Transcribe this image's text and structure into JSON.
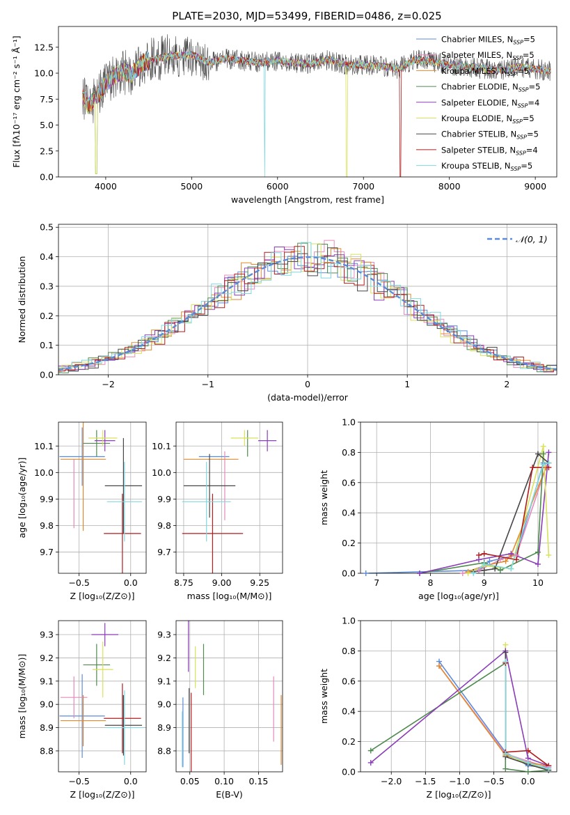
{
  "colors": [
    "#5b8bd8",
    "#e589bc",
    "#e08a2e",
    "#4f8a4f",
    "#8a3bb8",
    "#d8e25a",
    "#454545",
    "#b01c1c",
    "#7fd8e0"
  ],
  "chart_data": [
    {
      "id": "spectrum",
      "type": "line",
      "title": "PLATE=2030, MJD=53499, FIBERID=0486, z=0.025",
      "xlabel": "wavelength [Angstrom, rest frame]",
      "ylabel": "Flux [fλ10⁻¹⁷ erg cm⁻² s⁻¹ Å⁻¹]",
      "xlim": [
        3450,
        9250
      ],
      "ylim": [
        0,
        14.5
      ],
      "xticks": [
        4000,
        5000,
        6000,
        7000,
        8000,
        9000
      ],
      "yticks": [
        0.0,
        2.5,
        5.0,
        7.5,
        10.0,
        12.5
      ],
      "ytick_labels": [
        "0.0",
        "2.5",
        "5.0",
        "7.5",
        "10.0",
        "12.5"
      ],
      "continuum": [
        [
          3730,
          8.0
        ],
        [
          3800,
          6.8
        ],
        [
          3900,
          7.8
        ],
        [
          4000,
          9.0
        ],
        [
          4100,
          9.8
        ],
        [
          4200,
          10.2
        ],
        [
          4300,
          9.8
        ],
        [
          4400,
          10.8
        ],
        [
          4500,
          11.2
        ],
        [
          4700,
          11.6
        ],
        [
          5000,
          11.8
        ],
        [
          5200,
          11.0
        ],
        [
          5400,
          11.4
        ],
        [
          5600,
          11.2
        ],
        [
          5800,
          11.0
        ],
        [
          6000,
          11.2
        ],
        [
          6200,
          11.0
        ],
        [
          6400,
          10.9
        ],
        [
          6600,
          11.3
        ],
        [
          6800,
          10.8
        ],
        [
          7000,
          10.8
        ],
        [
          7200,
          10.7
        ],
        [
          7400,
          10.4
        ],
        [
          7600,
          11.3
        ],
        [
          7800,
          11.1
        ],
        [
          8000,
          10.8
        ],
        [
          8200,
          10.6
        ],
        [
          8400,
          10.4
        ],
        [
          8600,
          10.3
        ],
        [
          8800,
          10.6
        ],
        [
          9000,
          10.4
        ],
        [
          9180,
          10.2
        ]
      ],
      "legend_position": "upper-right",
      "legend": [
        "Chabrier MILES, N_SSP=5",
        "Salpeter MILES, N_SSP=5",
        "Kroupa MILES, N_SSP=5",
        "Chabrier ELODIE, N_SSP=5",
        "Salpeter ELODIE, N_SSP=4",
        "Kroupa ELODIE, N_SSP=5",
        "Chabrier STELIB, N_SSP=5",
        "Salpeter STELIB, N_SSP=4",
        "Kroupa STELIB, N_SSP=5"
      ],
      "grid": false
    },
    {
      "id": "residuals",
      "type": "histogram",
      "xlabel": "(data-model)/error",
      "ylabel": "Normed distribution",
      "xlim": [
        -2.5,
        2.5
      ],
      "ylim": [
        0,
        0.51
      ],
      "xticks": [
        -2,
        -1,
        0,
        1,
        2
      ],
      "xtick_labels": [
        "−2",
        "−1",
        "0",
        "1",
        "2"
      ],
      "yticks": [
        0.0,
        0.1,
        0.2,
        0.3,
        0.4,
        0.5
      ],
      "ytick_labels": [
        "0.0",
        "0.1",
        "0.2",
        "0.3",
        "0.4",
        "0.5"
      ],
      "bin_width": 0.1,
      "normal_curve_label": "𝒩(0, 1)",
      "legend_position": "upper-right",
      "grid": true
    },
    {
      "id": "age-vs-Z",
      "type": "scatter",
      "xlabel": "Z [log₁₀(Z/Z⊙)]",
      "ylabel": "age  [log₁₀(age/yr)]",
      "xlim": [
        -0.7,
        0.15
      ],
      "ylim": [
        9.62,
        10.19
      ],
      "xticks": [
        -0.5,
        0.0
      ],
      "xtick_labels": [
        "−0.5",
        "0.0"
      ],
      "yticks": [
        9.7,
        9.8,
        9.9,
        10.0,
        10.1
      ],
      "ytick_labels": [
        "9.7",
        "9.8",
        "9.9",
        "10.0",
        "10.1"
      ],
      "points": [
        {
          "x": -0.47,
          "y": 10.06,
          "xerr": 0.22,
          "yerr": 0.11
        },
        {
          "x": -0.55,
          "y": 9.92,
          "xerr": 0.0,
          "yerr": 0.13
        },
        {
          "x": -0.46,
          "y": 10.05,
          "xerr": 0.22,
          "yerr": 0.27
        },
        {
          "x": -0.33,
          "y": 10.11,
          "xerr": 0.13,
          "yerr": 0.05
        },
        {
          "x": -0.25,
          "y": 10.12,
          "xerr": 0.1,
          "yerr": 0.04
        },
        {
          "x": -0.27,
          "y": 10.13,
          "xerr": 0.14,
          "yerr": 0.03
        },
        {
          "x": -0.07,
          "y": 9.95,
          "xerr": 0.18,
          "yerr": 0.18
        },
        {
          "x": -0.08,
          "y": 9.77,
          "xerr": 0.18,
          "yerr": 0.15
        },
        {
          "x": -0.06,
          "y": 9.89,
          "xerr": 0.17,
          "yerr": 0.15
        }
      ],
      "grid": true
    },
    {
      "id": "age-vs-mass",
      "type": "scatter",
      "xlabel": "mass [log₁₀(M/M⊙)]",
      "ylabel": "",
      "xlim": [
        8.7,
        9.4
      ],
      "ylim": [
        9.62,
        10.19
      ],
      "xticks": [
        8.75,
        9.0,
        9.25
      ],
      "xtick_labels": [
        "8.75",
        "9.00",
        "9.25"
      ],
      "yticks": [
        9.7,
        9.8,
        9.9,
        10.0,
        10.1
      ],
      "ytick_labels": [
        "9.7",
        "9.8",
        "9.9",
        "10.0",
        "10.1"
      ],
      "points": [
        {
          "x": 8.95,
          "y": 10.06,
          "xerr": 0.1,
          "yerr": 0.0
        },
        {
          "x": 9.02,
          "y": 9.95,
          "xerr": 0.0,
          "yerr": 0.13
        },
        {
          "x": 8.93,
          "y": 10.05,
          "xerr": 0.18,
          "yerr": 0.0
        },
        {
          "x": 9.17,
          "y": 10.11,
          "xerr": 0.0,
          "yerr": 0.05
        },
        {
          "x": 9.3,
          "y": 10.12,
          "xerr": 0.06,
          "yerr": 0.04
        },
        {
          "x": 9.15,
          "y": 10.13,
          "xerr": 0.09,
          "yerr": 0.03
        },
        {
          "x": 8.92,
          "y": 9.95,
          "xerr": 0.17,
          "yerr": 0.12
        },
        {
          "x": 8.94,
          "y": 9.77,
          "xerr": 0.2,
          "yerr": 0.15
        },
        {
          "x": 8.9,
          "y": 9.89,
          "xerr": 0.16,
          "yerr": 0.15
        }
      ],
      "grid": true
    },
    {
      "id": "weight-vs-age",
      "type": "line",
      "xlabel": "age  [log₁₀(age/yr)]",
      "ylabel": "mass weight",
      "xlim": [
        6.7,
        10.35
      ],
      "ylim": [
        0,
        1.0
      ],
      "xticks": [
        7,
        8,
        9,
        10
      ],
      "xtick_labels": [
        "7",
        "8",
        "9",
        "10"
      ],
      "yticks": [
        0.0,
        0.2,
        0.4,
        0.6,
        0.8,
        1.0
      ],
      "ytick_labels": [
        "0.0",
        "0.2",
        "0.4",
        "0.6",
        "0.8",
        "1.0"
      ],
      "series": [
        {
          "x": [
            6.8,
            8.9,
            9.1,
            9.6,
            10.1
          ],
          "y": [
            0.0,
            0.02,
            0.08,
            0.12,
            0.73
          ]
        },
        {
          "x": [
            8.6,
            8.9,
            9.3,
            9.6,
            10.15
          ],
          "y": [
            0.0,
            0.02,
            0.09,
            0.12,
            0.7
          ]
        },
        {
          "x": [
            8.7,
            9.0,
            9.4,
            9.5,
            10.15
          ],
          "y": [
            0.01,
            0.05,
            0.08,
            0.12,
            0.7
          ]
        },
        {
          "x": [
            7.8,
            9.0,
            9.3,
            10.0,
            10.1
          ],
          "y": [
            0.0,
            0.07,
            0.02,
            0.14,
            0.79
          ]
        },
        {
          "x": [
            7.8,
            8.9,
            9.5,
            10.0,
            10.2
          ],
          "y": [
            0.0,
            0.09,
            0.13,
            0.06,
            0.8
          ]
        },
        {
          "x": [
            8.7,
            9.0,
            9.5,
            10.1,
            10.2
          ],
          "y": [
            0.0,
            0.05,
            0.03,
            0.84,
            0.12
          ]
        },
        {
          "x": [
            8.8,
            9.0,
            9.2,
            10.0,
            10.2
          ],
          "y": [
            0.01,
            0.02,
            0.03,
            0.79,
            0.73
          ]
        },
        {
          "x": [
            8.9,
            9.0,
            9.6,
            9.9,
            10.2
          ],
          "y": [
            0.12,
            0.13,
            0.09,
            0.7,
            0.7
          ]
        },
        {
          "x": [
            8.8,
            9.0,
            9.5,
            10.1,
            10.2
          ],
          "y": [
            0.0,
            0.06,
            0.03,
            0.72,
            0.73
          ]
        }
      ],
      "grid": true
    },
    {
      "id": "mass-vs-Z",
      "type": "scatter",
      "xlabel": "Z [log₁₀(Z/Z⊙)]",
      "ylabel": "mass [log₁₀(M/M⊙)]",
      "xlim": [
        -0.7,
        0.15
      ],
      "ylim": [
        8.71,
        9.36
      ],
      "xticks": [
        -0.5,
        0.0
      ],
      "xtick_labels": [
        "−0.5",
        "0.0"
      ],
      "yticks": [
        8.8,
        8.9,
        9.0,
        9.1,
        9.2,
        9.3
      ],
      "ytick_labels": [
        "8.8",
        "8.9",
        "9.0",
        "9.1",
        "9.2",
        "9.3"
      ],
      "points": [
        {
          "x": -0.47,
          "y": 8.95,
          "xerr": 0.22,
          "yerr": 0.18
        },
        {
          "x": -0.55,
          "y": 9.03,
          "xerr": 0.13,
          "yerr": 0.09
        },
        {
          "x": -0.46,
          "y": 8.93,
          "xerr": 0.22,
          "yerr": 0.11
        },
        {
          "x": -0.33,
          "y": 9.17,
          "xerr": 0.13,
          "yerr": 0.09
        },
        {
          "x": -0.25,
          "y": 9.3,
          "xerr": 0.13,
          "yerr": 0.05
        },
        {
          "x": -0.27,
          "y": 9.15,
          "xerr": 0.1,
          "yerr": 0.12
        },
        {
          "x": -0.07,
          "y": 8.91,
          "xerr": 0.18,
          "yerr": 0.13
        },
        {
          "x": -0.08,
          "y": 8.94,
          "xerr": 0.18,
          "yerr": 0.15
        },
        {
          "x": -0.06,
          "y": 8.9,
          "xerr": 0.18,
          "yerr": 0.16
        }
      ],
      "grid": true
    },
    {
      "id": "mass-vs-EBV",
      "type": "scatter",
      "xlabel": "E(B-V)",
      "ylabel": "",
      "xlim": [
        0.03,
        0.185
      ],
      "ylim": [
        8.71,
        9.36
      ],
      "xticks": [
        0.05,
        0.1,
        0.15
      ],
      "xtick_labels": [
        "0.05",
        "0.10",
        "0.15"
      ],
      "yticks": [
        8.8,
        8.9,
        9.0,
        9.1,
        9.2,
        9.3
      ],
      "ytick_labels": [
        "8.8",
        "8.9",
        "9.0",
        "9.1",
        "9.2",
        "9.3"
      ],
      "points": [
        {
          "x": 0.04,
          "y": 8.88,
          "xerr": 0,
          "yerr": 0.15
        },
        {
          "x": 0.172,
          "y": 8.98,
          "xerr": 0,
          "yerr": 0.14
        },
        {
          "x": 0.183,
          "y": 8.89,
          "xerr": 0,
          "yerr": 0.15
        },
        {
          "x": 0.07,
          "y": 9.15,
          "xerr": 0,
          "yerr": 0.11
        },
        {
          "x": 0.048,
          "y": 9.25,
          "xerr": 0,
          "yerr": 0.11
        },
        {
          "x": 0.058,
          "y": 9.16,
          "xerr": 0,
          "yerr": 0.09
        },
        {
          "x": 0.049,
          "y": 8.93,
          "xerr": 0,
          "yerr": 0.14
        },
        {
          "x": 0.052,
          "y": 8.85,
          "xerr": 0,
          "yerr": 0.2
        },
        {
          "x": 0.039,
          "y": 8.85,
          "xerr": 0,
          "yerr": 0.12
        }
      ],
      "grid": true
    },
    {
      "id": "weight-vs-Z",
      "type": "line",
      "xlabel": "Z [log₁₀(Z/Z⊙)]",
      "ylabel": "mass weight",
      "xlim": [
        -2.45,
        0.42
      ],
      "ylim": [
        0,
        1.0
      ],
      "xticks": [
        -2.0,
        -1.5,
        -1.0,
        -0.5,
        0.0
      ],
      "xtick_labels": [
        "−2.0",
        "−1.5",
        "−1.0",
        "−0.5",
        "0.0"
      ],
      "yticks": [
        0.0,
        0.2,
        0.4,
        0.6,
        0.8,
        1.0
      ],
      "ytick_labels": [
        "0.0",
        "0.2",
        "0.4",
        "0.6",
        "0.8",
        "1.0"
      ],
      "series": [
        {
          "x": [
            -1.3,
            -0.33,
            0.0,
            0.3
          ],
          "y": [
            0.73,
            0.13,
            0.04,
            0.03
          ]
        },
        {
          "x": [
            -1.3,
            -0.33,
            0.0,
            0.3
          ],
          "y": [
            0.7,
            0.12,
            0.07,
            0.03
          ]
        },
        {
          "x": [
            -1.3,
            -0.33,
            0.0,
            0.3
          ],
          "y": [
            0.7,
            0.11,
            0.06,
            0.04
          ]
        },
        {
          "x": [
            -2.3,
            -0.33,
            -0.33,
            0.0,
            0.3
          ],
          "y": [
            0.14,
            0.72,
            0.02,
            0.0,
            0.01
          ]
        },
        {
          "x": [
            -2.3,
            -0.33,
            0.0,
            0.3
          ],
          "y": [
            0.06,
            0.8,
            0.09,
            0.04
          ]
        },
        {
          "x": [
            -0.33,
            -0.33,
            0.0,
            0.3
          ],
          "y": [
            0.84,
            0.12,
            0.05,
            0.02
          ]
        },
        {
          "x": [
            -0.33,
            -0.33,
            0.0,
            0.3
          ],
          "y": [
            0.79,
            0.1,
            0.05,
            0.01
          ]
        },
        {
          "x": [
            -0.33,
            -0.33,
            0.0,
            0.3
          ],
          "y": [
            0.72,
            0.13,
            0.14,
            0.04
          ]
        },
        {
          "x": [
            -0.33,
            -0.33,
            0.0,
            0.3
          ],
          "y": [
            0.73,
            0.12,
            0.06,
            0.02
          ]
        }
      ],
      "grid": true
    }
  ]
}
